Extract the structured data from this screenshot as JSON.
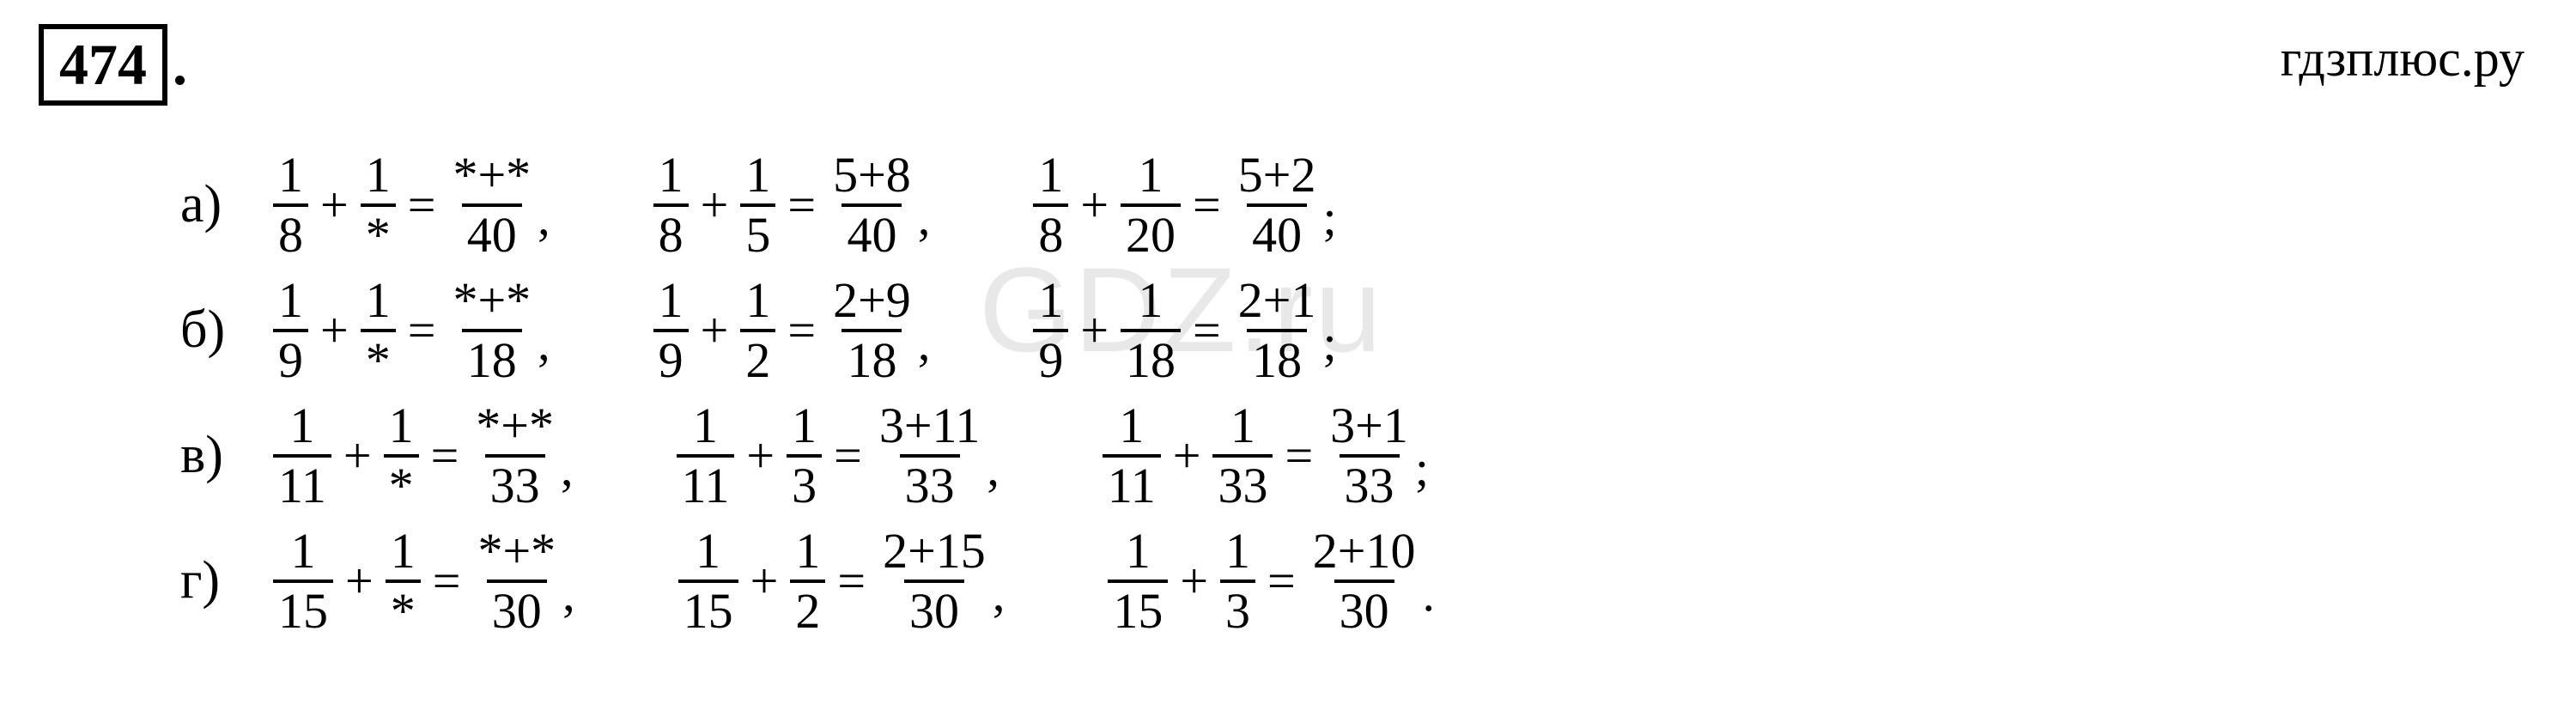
{
  "header": {
    "problem_number": "474",
    "dot": ".",
    "site": "гдзплюс.ру"
  },
  "watermark": "GDZ.ru",
  "rows": [
    {
      "label": "а)",
      "equations": [
        {
          "a_num": "1",
          "a_den": "8",
          "b_num": "1",
          "b_den": "*",
          "r_num": "*+*",
          "r_den": "40",
          "punct": ","
        },
        {
          "a_num": "1",
          "a_den": "8",
          "b_num": "1",
          "b_den": "5",
          "r_num": "5+8",
          "r_den": "40",
          "punct": ","
        },
        {
          "a_num": "1",
          "a_den": "8",
          "b_num": "1",
          "b_den": "20",
          "r_num": "5+2",
          "r_den": "40",
          "punct": ";"
        }
      ]
    },
    {
      "label": "б)",
      "equations": [
        {
          "a_num": "1",
          "a_den": "9",
          "b_num": "1",
          "b_den": "*",
          "r_num": "*+*",
          "r_den": "18",
          "punct": ","
        },
        {
          "a_num": "1",
          "a_den": "9",
          "b_num": "1",
          "b_den": "2",
          "r_num": "2+9",
          "r_den": "18",
          "punct": ","
        },
        {
          "a_num": "1",
          "a_den": "9",
          "b_num": "1",
          "b_den": "18",
          "r_num": "2+1",
          "r_den": "18",
          "punct": ";"
        }
      ]
    },
    {
      "label": "в)",
      "equations": [
        {
          "a_num": "1",
          "a_den": "11",
          "b_num": "1",
          "b_den": "*",
          "r_num": "*+*",
          "r_den": "33",
          "punct": ","
        },
        {
          "a_num": "1",
          "a_den": "11",
          "b_num": "1",
          "b_den": "3",
          "r_num": "3+11",
          "r_den": "33",
          "punct": ","
        },
        {
          "a_num": "1",
          "a_den": "11",
          "b_num": "1",
          "b_den": "33",
          "r_num": "3+1",
          "r_den": "33",
          "punct": ";"
        }
      ]
    },
    {
      "label": "г)",
      "equations": [
        {
          "a_num": "1",
          "a_den": "15",
          "b_num": "1",
          "b_den": "*",
          "r_num": "*+*",
          "r_den": "30",
          "punct": ","
        },
        {
          "a_num": "1",
          "a_den": "15",
          "b_num": "1",
          "b_den": "2",
          "r_num": "2+15",
          "r_den": "30",
          "punct": ","
        },
        {
          "a_num": "1",
          "a_den": "15",
          "b_num": "1",
          "b_den": "3",
          "r_num": "2+10",
          "r_den": "30",
          "punct": "."
        }
      ]
    }
  ]
}
